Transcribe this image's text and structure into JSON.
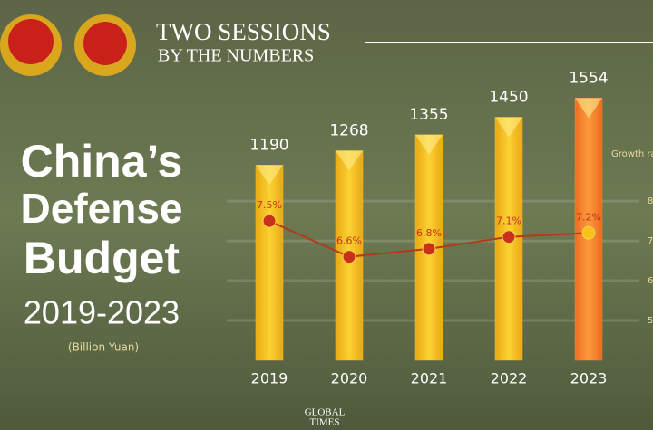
{
  "header": {
    "line1": "TWO SESSIONS",
    "line2": "BY THE NUMBERS",
    "title1": "China’s",
    "title2": "Defense",
    "title3": "Budget",
    "years": "2019-2023",
    "unit": "(Billion Yuan)",
    "logo1": "GLOBAL",
    "logo2": "TIMES"
  },
  "chart_data": {
    "type": "combo",
    "categories": [
      "2019",
      "2020",
      "2021",
      "2022",
      "2023"
    ],
    "series": [
      {
        "type": "bar",
        "values": [
          1190,
          1268,
          1355,
          1450,
          1554
        ],
        "colors": [
          "#f7c51a",
          "#f7c51a",
          "#f7c51a",
          "#f7c51a",
          "#f78a2e"
        ]
      },
      {
        "type": "line",
        "axis": "y2",
        "values": [
          7.5,
          6.6,
          6.8,
          7.1,
          7.2
        ],
        "value_labels": [
          "7.5%",
          "6.6%",
          "6.8%",
          "7.1%",
          "7.2%"
        ],
        "color": "#b23a1c",
        "marker_colors": [
          "#c8321a",
          "#c8321a",
          "#c8321a",
          "#c8321a",
          "#f6c21c"
        ]
      }
    ],
    "ylim": [
      130,
      1600
    ],
    "y2lim": [
      4,
      10.8
    ],
    "y2ticks": [
      5,
      6,
      7,
      8
    ],
    "y2label": "Growth ra",
    "grid": true
  }
}
